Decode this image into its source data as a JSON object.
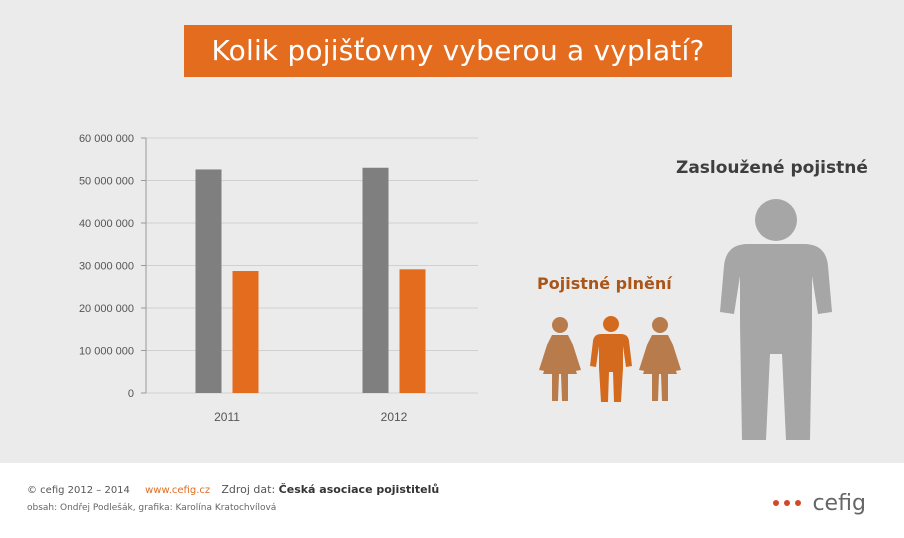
{
  "title": "Kolik pojišťovny vyberou a vyplatí?",
  "colors": {
    "accent": "#e36c1f",
    "gray": "#7f7f7f",
    "figure_gray": "#a6a6a6",
    "female_figure": "#b87b4c"
  },
  "chart_data": {
    "type": "bar",
    "categories": [
      "2011",
      "2012"
    ],
    "series": [
      {
        "values": [
          52600000,
          53000000
        ],
        "color": "#7f7f7f"
      },
      {
        "values": [
          28700000,
          29100000
        ],
        "color": "#e36c1f"
      }
    ],
    "ylim": [
      0,
      60000000
    ],
    "y_ticks": [
      "0",
      "10 000 000",
      "20 000 000",
      "30 000 000",
      "40 000 000",
      "50 000 000",
      "60 000 000"
    ],
    "grid": true
  },
  "labels": {
    "earned_premium": "Zasloužené pojistné",
    "claims": "Pojistné plnění"
  },
  "icons": [
    "person-large-icon",
    "person-female-icon",
    "person-male-icon",
    "person-female-icon"
  ],
  "footer": {
    "copyright": "© cefig 2012 – 2014",
    "url": "www.cefig.cz",
    "source_label": "Zdroj dat:",
    "source_name": "Česká asociace pojistitelů",
    "credits": "obsah: Ondřej Podlešák, grafika: Karolína Kratochvílová",
    "logo_text": "cefig"
  }
}
